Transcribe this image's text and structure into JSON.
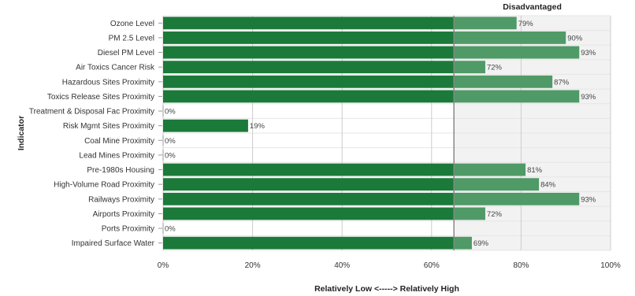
{
  "chart_data": {
    "type": "bar",
    "orientation": "horizontal",
    "categories": [
      "Ozone Level",
      "PM 2.5 Level",
      "Diesel PM Level",
      "Air Toxics Cancer Risk",
      "Hazardous Sites Proximity",
      "Toxics Release Sites Proximity",
      "Treatment & Disposal Fac Proximity",
      "Risk Mgmt Sites Proximity",
      "Coal Mine Proximity",
      "Lead Mines Proximity",
      "Pre-1980s Housing",
      "High-Volume Road Proximity",
      "Railways Proximity",
      "Airports Proximity",
      "Ports Proximity",
      "Impaired Surface Water"
    ],
    "values": [
      79,
      90,
      93,
      72,
      87,
      93,
      0,
      19,
      0,
      0,
      81,
      84,
      93,
      72,
      0,
      69
    ],
    "value_labels": [
      "79%",
      "90%",
      "93%",
      "72%",
      "87%",
      "93%",
      "0%",
      "19%",
      "0%",
      "0%",
      "81%",
      "84%",
      "93%",
      "72%",
      "0%",
      "69%"
    ],
    "xlim": [
      0,
      100
    ],
    "x_ticks": [
      0,
      20,
      40,
      60,
      80,
      100
    ],
    "x_tick_labels": [
      "0%",
      "20%",
      "40%",
      "60%",
      "80%",
      "100%"
    ],
    "xlabel": "Relatively Low <-----> Relatively High",
    "ylabel": "Indicator",
    "threshold": 65,
    "threshold_label": "Disadvantaged",
    "colors": {
      "bar": "#1b7a3a",
      "bar_above_threshold": "#4f9a66",
      "band": "#f2f2f2",
      "grid": "#cccccc",
      "threshold_line": "#888888"
    },
    "grid": true
  }
}
